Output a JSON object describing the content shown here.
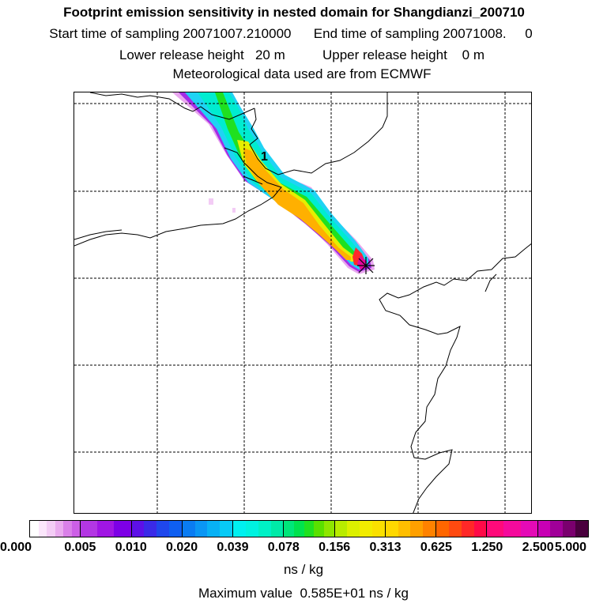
{
  "header": {
    "title": "Footprint emission sensitivity in nested domain for Shangdianzi_200710",
    "sampling_line": "Start time of sampling 20071007.210000      End time of sampling 20071008.     0",
    "release_line": "Lower release height   20 m          Upper release height    0 m",
    "met_line": "Meteorological data used are from ECMWF"
  },
  "map": {
    "plume_label": "1"
  },
  "colorbar": {
    "ticks": [
      "0.000",
      "0.005",
      "0.010",
      "0.020",
      "0.039",
      "0.078",
      "0.156",
      "0.313",
      "0.625",
      "1.250",
      "2.500",
      "5.000"
    ],
    "colors": [
      [
        "#ffffff",
        "#fbe6fb",
        "#f3ccf5",
        "#e9aaee",
        "#d980e8",
        "#cc5fe6"
      ],
      [
        "#b337e3",
        "#a016e3",
        "#7d00e6"
      ],
      [
        "#5d10e8",
        "#3a2ae8",
        "#1f47ec",
        "#0f5ff0"
      ],
      [
        "#0a7cf2",
        "#0a96f4",
        "#08b1f5",
        "#08caf6"
      ],
      [
        "#00f0f0",
        "#00f2e0",
        "#00f0c6",
        "#00eaa8"
      ],
      [
        "#00e67a",
        "#00e24e",
        "#20e020",
        "#5ae000",
        "#8ee600"
      ],
      [
        "#b8ec00",
        "#dcf000",
        "#f2ec00",
        "#fae000"
      ],
      [
        "#ffd800",
        "#ffbe00",
        "#ffa000",
        "#ff8200"
      ],
      [
        "#ff6600",
        "#ff4a10",
        "#ff2828",
        "#ff0a48"
      ],
      [
        "#ff0a7a",
        "#f50a9c",
        "#e40ab6"
      ],
      [
        "#c800b4",
        "#a00098",
        "#7a006e",
        "#4a003e"
      ]
    ],
    "unit": "ns / kg",
    "max_value_text": "Maximum value  0.585E+01 ns / kg"
  }
}
